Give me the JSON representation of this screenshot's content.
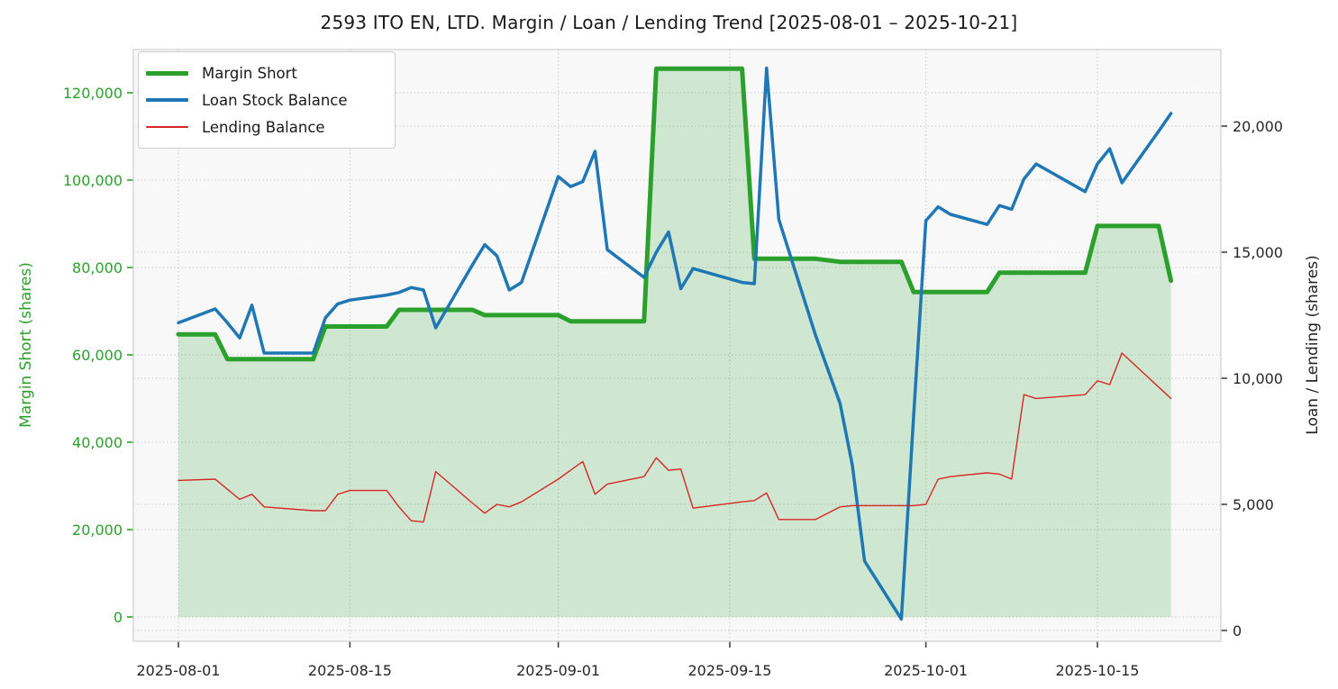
{
  "title": "2593 ITO EN, LTD. Margin / Loan / Lending Trend [2025-08-01 – 2025-10-21]",
  "colors": {
    "margin_short_line": "#2ca02c",
    "margin_short_fill": "rgba(44,160,44,0.2)",
    "loan_stock_line": "#1f77b4",
    "lending_line": "#d62728",
    "left_axis_text": "#2ca02c",
    "right_axis_text": "#262626",
    "grid": "#c9c9c9",
    "plot_background": "#f8f8f9",
    "spine": "#d5d5d5"
  },
  "chart_data": {
    "type": "line",
    "title": "2593 ITO EN, LTD. Margin / Loan / Lending Trend [2025-08-01 – 2025-10-21]",
    "grid": "dotted",
    "legend_position": "upper-left",
    "x": [
      "2025-08-01",
      "2025-08-04",
      "2025-08-05",
      "2025-08-06",
      "2025-08-07",
      "2025-08-08",
      "2025-08-12",
      "2025-08-13",
      "2025-08-14",
      "2025-08-15",
      "2025-08-18",
      "2025-08-19",
      "2025-08-20",
      "2025-08-21",
      "2025-08-22",
      "2025-08-25",
      "2025-08-26",
      "2025-08-27",
      "2025-08-28",
      "2025-08-29",
      "2025-09-01",
      "2025-09-02",
      "2025-09-03",
      "2025-09-04",
      "2025-09-05",
      "2025-09-08",
      "2025-09-09",
      "2025-09-10",
      "2025-09-11",
      "2025-09-12",
      "2025-09-16",
      "2025-09-17",
      "2025-09-18",
      "2025-09-19",
      "2025-09-22",
      "2025-09-24",
      "2025-09-25",
      "2025-09-26",
      "2025-09-29",
      "2025-09-30",
      "2025-10-01",
      "2025-10-02",
      "2025-10-03",
      "2025-10-06",
      "2025-10-07",
      "2025-10-08",
      "2025-10-09",
      "2025-10-10",
      "2025-10-14",
      "2025-10-15",
      "2025-10-16",
      "2025-10-17",
      "2025-10-20",
      "2025-10-21"
    ],
    "x_ticks": [
      "2025-08-01",
      "2025-08-15",
      "2025-09-01",
      "2025-09-15",
      "2025-10-01",
      "2025-10-15"
    ],
    "series": [
      {
        "name": "Margin Short",
        "axis": "left",
        "color": "#2ca02c",
        "width": 5,
        "fill": true,
        "fill_color": "rgba(44,160,44,0.2)",
        "values": [
          64700,
          64700,
          59000,
          59000,
          59000,
          59000,
          59000,
          66500,
          66500,
          66500,
          66500,
          70300,
          70300,
          70300,
          70300,
          70300,
          69100,
          69100,
          69100,
          69100,
          69100,
          67700,
          67700,
          67700,
          67700,
          67700,
          125500,
          125500,
          125500,
          125500,
          125500,
          82000,
          82000,
          82000,
          82000,
          81300,
          81300,
          81300,
          81300,
          74400,
          74400,
          74400,
          74400,
          74400,
          78800,
          78800,
          78800,
          78800,
          78800,
          89500,
          89500,
          89500,
          89500,
          77000
        ]
      },
      {
        "name": "Loan Stock Balance",
        "axis": "right",
        "color": "#1f77b4",
        "width": 3.5,
        "fill": false,
        "values": [
          12200,
          12750,
          12200,
          11600,
          12900,
          11000,
          11000,
          12400,
          12950,
          13100,
          13300,
          13400,
          13600,
          13500,
          12000,
          14500,
          15300,
          14850,
          13500,
          13800,
          18000,
          17600,
          17800,
          19000,
          15100,
          14000,
          15000,
          15800,
          13550,
          14350,
          13800,
          13750,
          22300,
          16300,
          11700,
          9000,
          6550,
          2750,
          450,
          8500,
          16250,
          16800,
          16500,
          16100,
          16850,
          16700,
          17900,
          18500,
          17400,
          18500,
          19100,
          17750,
          19800,
          20500
        ]
      },
      {
        "name": "Lending Balance",
        "axis": "right",
        "color": "#d62728",
        "width": 1.4,
        "fill": false,
        "values": [
          5950,
          6000,
          5600,
          5200,
          5400,
          4900,
          4750,
          4750,
          5400,
          5550,
          5550,
          4900,
          4350,
          4300,
          6300,
          5050,
          4650,
          5000,
          4900,
          5100,
          6000,
          6350,
          6700,
          5400,
          5800,
          6100,
          6850,
          6350,
          6400,
          4850,
          5100,
          5150,
          5450,
          4400,
          4400,
          4900,
          4950,
          4950,
          4950,
          4950,
          5000,
          6000,
          6100,
          6250,
          6200,
          6000,
          9350,
          9200,
          9350,
          9900,
          9750,
          11000,
          9650,
          9200
        ]
      }
    ],
    "left_axis": {
      "label": "Margin Short (shares)",
      "ticks": [
        0,
        20000,
        40000,
        60000,
        80000,
        100000,
        120000
      ],
      "range": [
        -5600,
        130000
      ]
    },
    "right_axis": {
      "label": "Loan / Lending (shares)",
      "ticks": [
        0,
        5000,
        10000,
        15000,
        20000
      ],
      "range": [
        -430,
        23040
      ]
    }
  },
  "legend": {
    "items": [
      {
        "label": "Margin Short"
      },
      {
        "label": "Loan Stock Balance"
      },
      {
        "label": "Lending Balance"
      }
    ]
  }
}
